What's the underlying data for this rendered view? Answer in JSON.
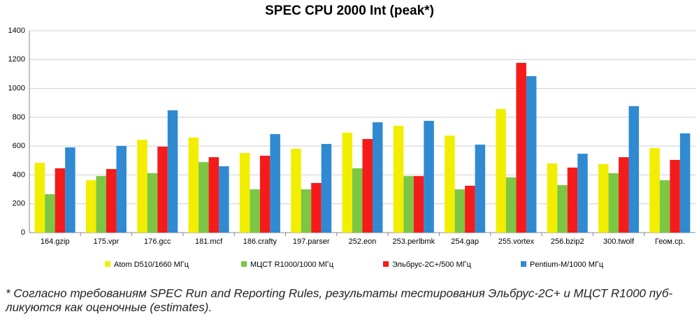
{
  "chart_data": {
    "type": "bar",
    "title": "SPEC CPU 2000 Int (peak*)",
    "categories": [
      "164.gzip",
      "175.vpr",
      "176.gcc",
      "181.mcf",
      "186.crafty",
      "197.parser",
      "252.eon",
      "253.perlbmk",
      "254.gap",
      "255.vortex",
      "256.bzip2",
      "300.twolf",
      "Геом.ср."
    ],
    "series": [
      {
        "name": "Atom D510/1660 МГц",
        "color": "#f2ee00",
        "values": [
          484,
          363,
          644,
          659,
          552,
          581,
          693,
          741,
          673,
          857,
          480,
          475,
          586
        ]
      },
      {
        "name": "МЦСТ R1000/1000 МГц",
        "color": "#7cc644",
        "values": [
          266,
          392,
          412,
          489,
          300,
          300,
          446,
          392,
          300,
          383,
          329,
          412,
          363
        ]
      },
      {
        "name": "Эльбрус-2С+/500 МГц",
        "color": "#f51b1b",
        "values": [
          446,
          441,
          596,
          523,
          533,
          344,
          649,
          392,
          325,
          1177,
          451,
          523,
          504
        ]
      },
      {
        "name": "Pentium-M/1000 МГц",
        "color": "#2f8ad2",
        "values": [
          591,
          601,
          848,
          460,
          683,
          615,
          765,
          775,
          610,
          1085,
          547,
          877,
          688
        ]
      }
    ],
    "ylim": [
      0,
      1400
    ],
    "yticks": [
      0,
      200,
      400,
      600,
      800,
      1000,
      1200,
      1400
    ],
    "grid": true,
    "legend": "bottom",
    "footnote": [
      "* Согласно требованиям SPEC Run and Reporting Rules, результаты тестирования Эльбрус-2С+ и МЦСТ R1000 пуб-",
      "ликуются как оценочные (estimates)."
    ]
  }
}
